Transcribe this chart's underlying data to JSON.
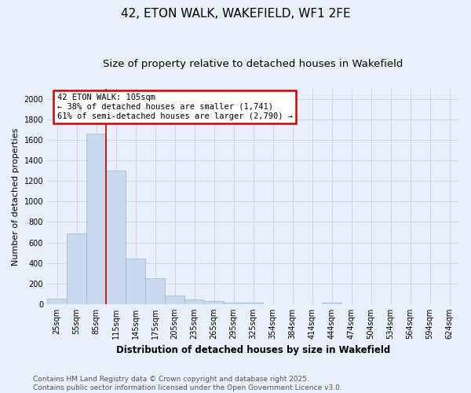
{
  "title": "42, ETON WALK, WAKEFIELD, WF1 2FE",
  "subtitle": "Size of property relative to detached houses in Wakefield",
  "xlabel": "Distribution of detached houses by size in Wakefield",
  "ylabel": "Number of detached properties",
  "categories": [
    "25sqm",
    "55sqm",
    "85sqm",
    "115sqm",
    "145sqm",
    "175sqm",
    "205sqm",
    "235sqm",
    "265sqm",
    "295sqm",
    "325sqm",
    "354sqm",
    "384sqm",
    "414sqm",
    "444sqm",
    "474sqm",
    "504sqm",
    "534sqm",
    "564sqm",
    "594sqm",
    "624sqm"
  ],
  "values": [
    50,
    690,
    1660,
    1300,
    440,
    250,
    80,
    45,
    28,
    18,
    13,
    0,
    0,
    0,
    18,
    0,
    0,
    0,
    0,
    0,
    0
  ],
  "bar_color": "#c8d8ed",
  "bar_edge_color": "#9ab4d4",
  "grid_color": "#c8d4e0",
  "background_color": "#e8eff8",
  "vline_x_index": 3,
  "vline_color": "#cc0000",
  "annotation_text": "42 ETON WALK: 105sqm\n← 38% of detached houses are smaller (1,741)\n61% of semi-detached houses are larger (2,790) →",
  "annotation_box_color": "#cc0000",
  "annotation_bg": "#ffffff",
  "ylim": [
    0,
    2100
  ],
  "yticks": [
    0,
    200,
    400,
    600,
    800,
    1000,
    1200,
    1400,
    1600,
    1800,
    2000
  ],
  "footnote_line1": "Contains HM Land Registry data © Crown copyright and database right 2025.",
  "footnote_line2": "Contains public sector information licensed under the Open Government Licence v3.0.",
  "title_fontsize": 11,
  "subtitle_fontsize": 9.5,
  "xlabel_fontsize": 8.5,
  "ylabel_fontsize": 8,
  "tick_fontsize": 7,
  "footnote_fontsize": 6.5,
  "annotation_fontsize": 7.5
}
